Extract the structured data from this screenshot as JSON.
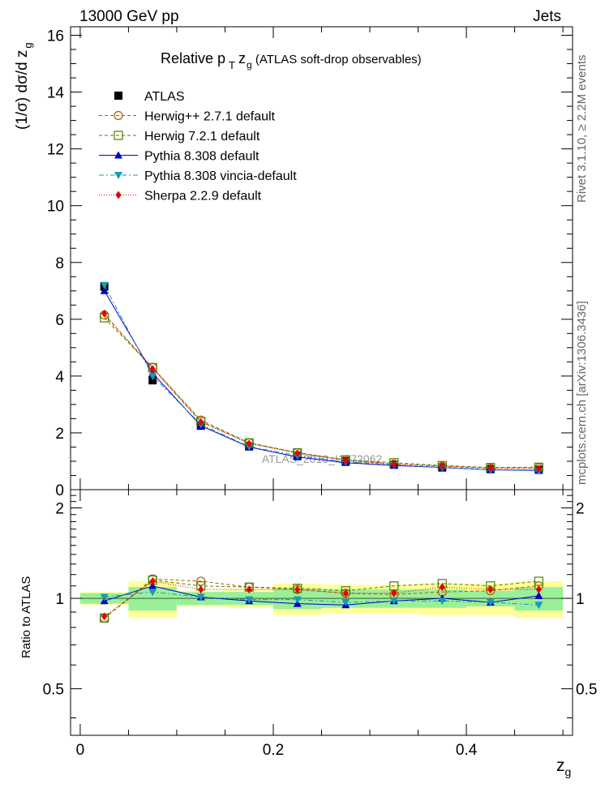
{
  "header": {
    "energy_label": "13000 GeV pp",
    "process_label": "Jets"
  },
  "side_labels": {
    "rivet": "Rivet 3.1.10, ≥ 2.2M events",
    "mcplots": "mcplots.cern.ch [arXiv:1306.3436]"
  },
  "chart_data": {
    "type": "scatter",
    "title_main": "Relative p",
    "title_sub_T": "T",
    "title_z": "z",
    "title_sub_g": "g",
    "title_rest": " (ATLAS soft-drop observables)",
    "watermark": "ATLAS_2019_I1772062",
    "ylabel_main": "(1/σ) dσ/d z",
    "ylabel_sub": "g",
    "ratio_ylabel": "Ratio to ATLAS",
    "xlabel": "z",
    "xlabel_sub": "g",
    "xlim": [
      -0.01,
      0.51
    ],
    "ylim": [
      0,
      16.3
    ],
    "ratio_ylim": [
      0.35,
      2.3
    ],
    "x_ticks": [
      "0",
      "0.2",
      "0.4"
    ],
    "x_tick_values": [
      0,
      0.2,
      0.4
    ],
    "y_ticks": [
      "0",
      "2",
      "4",
      "6",
      "8",
      "10",
      "12",
      "14",
      "16"
    ],
    "y_tick_values": [
      0,
      2,
      4,
      6,
      8,
      10,
      12,
      14,
      16
    ],
    "ratio_ticks": [
      "0.5",
      "1",
      "2"
    ],
    "ratio_tick_values": [
      0.5,
      1,
      2
    ],
    "bin_edges": [
      0.0,
      0.05,
      0.1,
      0.15,
      0.2,
      0.25,
      0.3,
      0.35,
      0.4,
      0.45,
      0.5
    ],
    "x": [
      0.025,
      0.075,
      0.125,
      0.175,
      0.225,
      0.275,
      0.325,
      0.375,
      0.425,
      0.475
    ],
    "data": {
      "name": "ATLAS",
      "values": [
        7.15,
        3.85,
        2.25,
        1.52,
        1.2,
        1.0,
        0.88,
        0.78,
        0.72,
        0.7
      ]
    },
    "band_green": [
      0.04,
      0.09,
      0.05,
      0.05,
      0.08,
      0.07,
      0.07,
      0.07,
      0.06,
      0.09
    ],
    "band_yellow": [
      0.05,
      0.14,
      0.06,
      0.07,
      0.12,
      0.11,
      0.11,
      0.12,
      0.12,
      0.14
    ],
    "series": [
      {
        "name": "Herwig++ 2.7.1 default",
        "color": "#b35900",
        "marker": "circle-open",
        "dash": "4,3",
        "values": [
          6.15,
          4.3,
          2.45,
          1.65,
          1.3,
          1.04,
          0.9,
          0.82,
          0.76,
          0.77
        ],
        "ratio": [
          0.86,
          1.16,
          1.14,
          1.09,
          1.07,
          1.04,
          1.03,
          1.05,
          1.06,
          1.1
        ]
      },
      {
        "name": "Herwig 7.2.1 default",
        "color": "#4d8000",
        "marker": "square-open",
        "dash": "4,3",
        "values": [
          6.05,
          4.3,
          2.4,
          1.65,
          1.3,
          1.05,
          0.95,
          0.85,
          0.78,
          0.79
        ],
        "ratio": [
          0.86,
          1.15,
          1.1,
          1.09,
          1.08,
          1.06,
          1.1,
          1.12,
          1.1,
          1.14
        ]
      },
      {
        "name": "Pythia 8.308 default",
        "color": "#0000cc",
        "marker": "triangle-up",
        "dash": "",
        "values": [
          7.0,
          4.1,
          2.25,
          1.5,
          1.15,
          0.95,
          0.85,
          0.78,
          0.7,
          0.68
        ],
        "ratio": [
          0.98,
          1.1,
          1.01,
          0.98,
          0.96,
          0.95,
          0.98,
          1.0,
          0.97,
          1.02
        ]
      },
      {
        "name": "Pythia 8.308 vincia-default",
        "color": "#1a99b3",
        "marker": "triangle-down",
        "dash": "6,3,2,3",
        "values": [
          7.2,
          4.0,
          2.3,
          1.52,
          1.2,
          0.98,
          0.87,
          0.78,
          0.7,
          0.66
        ],
        "ratio": [
          1.01,
          1.05,
          1.01,
          0.99,
          0.99,
          0.97,
          0.98,
          0.98,
          0.97,
          0.95
        ]
      },
      {
        "name": "Sherpa 2.2.9 default",
        "color": "#e60000",
        "marker": "diamond",
        "dash": "1,2",
        "values": [
          6.2,
          4.25,
          2.38,
          1.62,
          1.28,
          1.03,
          0.9,
          0.84,
          0.76,
          0.74
        ],
        "ratio": [
          0.87,
          1.14,
          1.07,
          1.07,
          1.07,
          1.04,
          1.04,
          1.09,
          1.07,
          1.07
        ]
      }
    ]
  }
}
